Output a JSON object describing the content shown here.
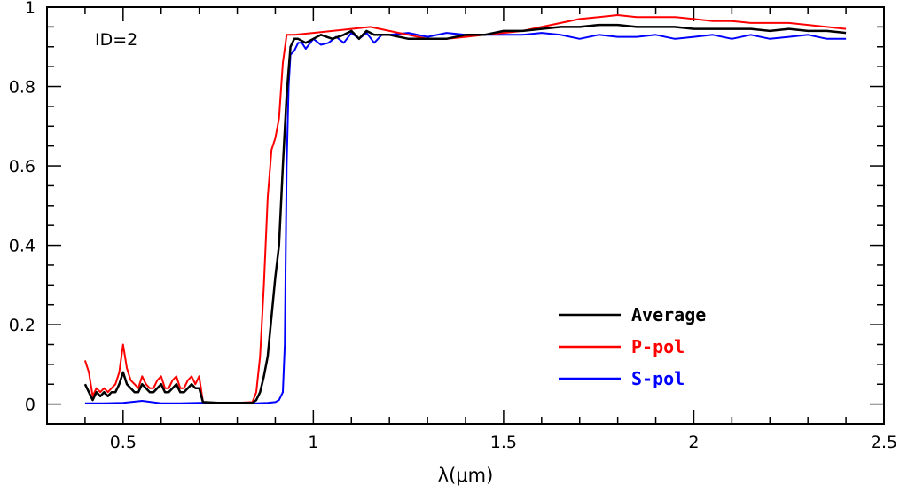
{
  "chart_data": {
    "type": "line",
    "title": "",
    "xlabel": "λ(μm)",
    "ylabel": "",
    "annotation": "ID=2",
    "xlim": [
      0.3,
      2.5
    ],
    "ylim": [
      -0.05,
      1.0
    ],
    "xticks": [
      0.5,
      1,
      1.5,
      2,
      2.5
    ],
    "xtick_labels": [
      "0.5",
      "1",
      "1.5",
      "2",
      "2.5"
    ],
    "yticks": [
      0,
      0.2,
      0.4,
      0.6,
      0.8,
      1
    ],
    "ytick_labels": [
      "0",
      "0.2",
      "0.4",
      "0.6",
      "0.8",
      "1"
    ],
    "grid": false,
    "legend_position": "lower-right",
    "series": [
      {
        "name": "Average",
        "color": "#000000",
        "x": [
          0.4,
          0.41,
          0.42,
          0.43,
          0.44,
          0.45,
          0.46,
          0.47,
          0.48,
          0.49,
          0.5,
          0.51,
          0.52,
          0.53,
          0.54,
          0.55,
          0.56,
          0.57,
          0.58,
          0.59,
          0.6,
          0.61,
          0.62,
          0.63,
          0.64,
          0.65,
          0.66,
          0.67,
          0.68,
          0.69,
          0.7,
          0.71,
          0.75,
          0.8,
          0.84,
          0.85,
          0.86,
          0.87,
          0.88,
          0.89,
          0.9,
          0.91,
          0.92,
          0.93,
          0.94,
          0.95,
          0.96,
          0.98,
          1.0,
          1.02,
          1.05,
          1.08,
          1.1,
          1.12,
          1.14,
          1.16,
          1.18,
          1.2,
          1.25,
          1.3,
          1.35,
          1.4,
          1.45,
          1.5,
          1.55,
          1.6,
          1.65,
          1.7,
          1.75,
          1.8,
          1.85,
          1.9,
          1.95,
          2.0,
          2.05,
          2.1,
          2.15,
          2.2,
          2.25,
          2.3,
          2.35,
          2.4
        ],
        "y": [
          0.05,
          0.03,
          0.01,
          0.03,
          0.02,
          0.03,
          0.02,
          0.03,
          0.03,
          0.05,
          0.08,
          0.05,
          0.04,
          0.03,
          0.03,
          0.05,
          0.04,
          0.03,
          0.03,
          0.04,
          0.05,
          0.03,
          0.03,
          0.04,
          0.05,
          0.03,
          0.03,
          0.04,
          0.05,
          0.04,
          0.04,
          0.005,
          0.003,
          0.003,
          0.003,
          0.01,
          0.03,
          0.07,
          0.12,
          0.22,
          0.32,
          0.4,
          0.6,
          0.78,
          0.9,
          0.92,
          0.92,
          0.91,
          0.92,
          0.93,
          0.92,
          0.93,
          0.94,
          0.92,
          0.94,
          0.93,
          0.93,
          0.93,
          0.92,
          0.92,
          0.92,
          0.93,
          0.93,
          0.94,
          0.94,
          0.945,
          0.95,
          0.95,
          0.955,
          0.955,
          0.95,
          0.95,
          0.95,
          0.945,
          0.945,
          0.945,
          0.945,
          0.94,
          0.945,
          0.94,
          0.94,
          0.935
        ]
      },
      {
        "name": "P-pol",
        "color": "#ff0000",
        "x": [
          0.4,
          0.41,
          0.42,
          0.43,
          0.44,
          0.45,
          0.46,
          0.47,
          0.48,
          0.49,
          0.5,
          0.51,
          0.52,
          0.53,
          0.54,
          0.55,
          0.56,
          0.57,
          0.58,
          0.59,
          0.6,
          0.61,
          0.62,
          0.63,
          0.64,
          0.65,
          0.66,
          0.67,
          0.68,
          0.69,
          0.7,
          0.71,
          0.75,
          0.8,
          0.84,
          0.85,
          0.86,
          0.87,
          0.88,
          0.89,
          0.9,
          0.91,
          0.92,
          0.93,
          0.95,
          1.0,
          1.05,
          1.1,
          1.15,
          1.2,
          1.25,
          1.3,
          1.35,
          1.4,
          1.45,
          1.5,
          1.55,
          1.6,
          1.65,
          1.7,
          1.75,
          1.8,
          1.85,
          1.9,
          1.95,
          2.0,
          2.05,
          2.1,
          2.15,
          2.2,
          2.25,
          2.3,
          2.35,
          2.4
        ],
        "y": [
          0.11,
          0.08,
          0.02,
          0.04,
          0.03,
          0.04,
          0.03,
          0.04,
          0.05,
          0.08,
          0.15,
          0.09,
          0.06,
          0.05,
          0.04,
          0.07,
          0.05,
          0.04,
          0.04,
          0.06,
          0.07,
          0.04,
          0.04,
          0.06,
          0.07,
          0.04,
          0.04,
          0.06,
          0.07,
          0.05,
          0.07,
          0.005,
          0.003,
          0.003,
          0.005,
          0.03,
          0.12,
          0.3,
          0.52,
          0.64,
          0.67,
          0.72,
          0.86,
          0.93,
          0.93,
          0.935,
          0.94,
          0.945,
          0.95,
          0.94,
          0.93,
          0.92,
          0.92,
          0.925,
          0.93,
          0.935,
          0.94,
          0.95,
          0.96,
          0.97,
          0.975,
          0.98,
          0.975,
          0.975,
          0.975,
          0.97,
          0.965,
          0.965,
          0.96,
          0.96,
          0.96,
          0.955,
          0.95,
          0.945
        ]
      },
      {
        "name": "S-pol",
        "color": "#0000ff",
        "x": [
          0.4,
          0.45,
          0.5,
          0.55,
          0.6,
          0.65,
          0.7,
          0.75,
          0.8,
          0.85,
          0.88,
          0.9,
          0.91,
          0.92,
          0.925,
          0.93,
          0.935,
          0.94,
          0.95,
          0.96,
          0.97,
          0.98,
          1.0,
          1.02,
          1.04,
          1.06,
          1.08,
          1.1,
          1.12,
          1.14,
          1.16,
          1.18,
          1.2,
          1.25,
          1.3,
          1.35,
          1.4,
          1.45,
          1.5,
          1.55,
          1.6,
          1.65,
          1.7,
          1.75,
          1.8,
          1.85,
          1.9,
          1.95,
          2.0,
          2.05,
          2.1,
          2.15,
          2.2,
          2.25,
          2.3,
          2.35,
          2.4
        ],
        "y": [
          0.002,
          0.002,
          0.003,
          0.008,
          0.002,
          0.002,
          0.003,
          0.003,
          0.002,
          0.002,
          0.003,
          0.005,
          0.01,
          0.03,
          0.15,
          0.6,
          0.8,
          0.88,
          0.89,
          0.91,
          0.91,
          0.895,
          0.92,
          0.905,
          0.91,
          0.925,
          0.91,
          0.935,
          0.92,
          0.935,
          0.91,
          0.93,
          0.93,
          0.935,
          0.925,
          0.935,
          0.93,
          0.93,
          0.93,
          0.93,
          0.935,
          0.93,
          0.92,
          0.93,
          0.925,
          0.925,
          0.93,
          0.92,
          0.925,
          0.93,
          0.92,
          0.93,
          0.92,
          0.925,
          0.93,
          0.92,
          0.92
        ]
      }
    ]
  }
}
